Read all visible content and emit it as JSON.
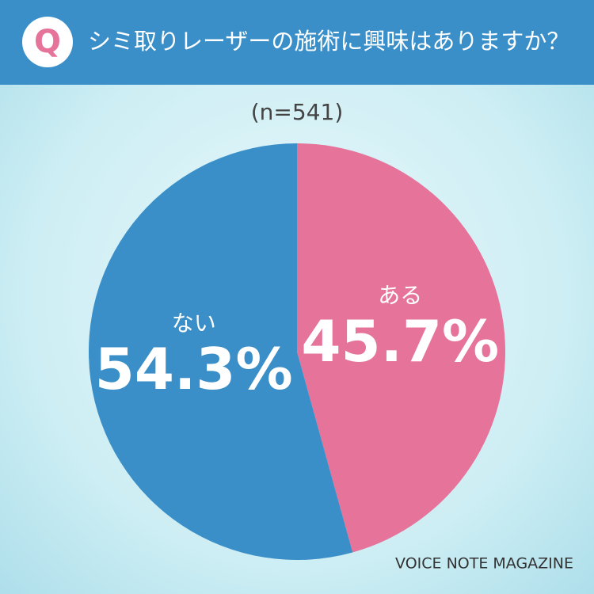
{
  "chart_data": {
    "type": "pie",
    "badge": "Q",
    "title": "シミ取りレーザーの施術に興味はありますか？",
    "subtitle": "(n=541)",
    "categories": [
      "ある",
      "ない"
    ],
    "values": [
      45.7,
      54.3
    ],
    "value_labels": [
      "45.7%",
      "54.3%"
    ],
    "colors": [
      "#e67399",
      "#3a8fc8"
    ],
    "source": "VOICE NOTE MAGAZINE"
  }
}
